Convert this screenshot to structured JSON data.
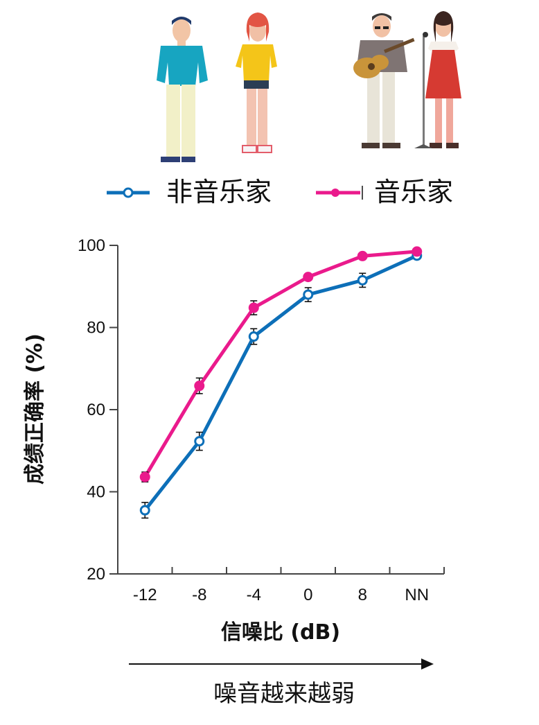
{
  "chart_data": {
    "type": "line",
    "categories": [
      "-12",
      "-8",
      "-4",
      "0",
      "8",
      "NN"
    ],
    "ylim": [
      20,
      100
    ],
    "yticks": [
      20,
      40,
      60,
      80,
      100
    ],
    "ylabel": "成绩正确率 (%)",
    "xlabel": "信噪比 (dB)",
    "grid": false,
    "legend_position": "top",
    "series": [
      {
        "name": "非音乐家",
        "color": "#0d6fb8",
        "marker": "open-circle",
        "values": [
          35.5,
          52.3,
          77.8,
          88.0,
          91.5,
          97.5
        ],
        "errors": [
          1.9,
          2.2,
          1.9,
          1.7,
          1.7,
          0.5
        ]
      },
      {
        "name": "音乐家",
        "color": "#ea1a8c",
        "marker": "filled-circle",
        "values": [
          43.6,
          65.8,
          84.8,
          92.3,
          97.4,
          98.5
        ],
        "errors": [
          1.2,
          1.9,
          1.7,
          0.7,
          0.4,
          0.3
        ]
      }
    ],
    "annotation": "噪音越来越弱"
  },
  "legend": {
    "nonmusician": "非音乐家",
    "musician": "音乐家"
  }
}
